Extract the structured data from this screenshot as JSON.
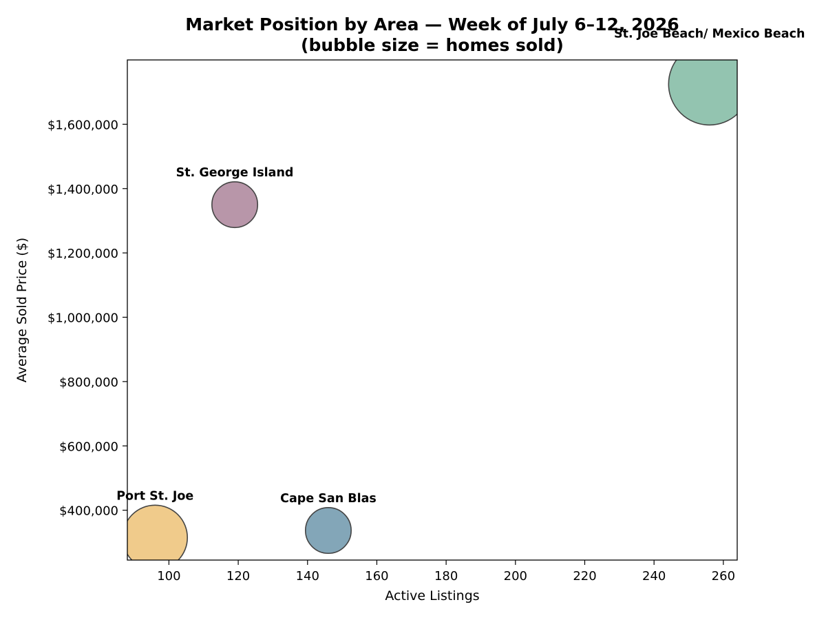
{
  "chart_data": {
    "type": "scatter",
    "title_line1": "Market Position by Area — Week of July 6–12, 2026",
    "title_line2": "(bubble size = homes sold)",
    "xlabel": "Active Listings",
    "ylabel": "Average Sold Price ($)",
    "xlim": [
      88,
      264
    ],
    "ylim": [
      245000,
      1800000
    ],
    "xticks": [
      100,
      120,
      140,
      160,
      180,
      200,
      220,
      240,
      260
    ],
    "yticks": [
      400000,
      600000,
      800000,
      1000000,
      1200000,
      1400000,
      1600000
    ],
    "ytick_labels": [
      "$400,000",
      "$600,000",
      "$800,000",
      "$1,000,000",
      "$1,200,000",
      "$1,400,000",
      "$1,600,000"
    ],
    "grid": false,
    "points": [
      {
        "label": "Port St. Joe",
        "x": 96,
        "y": 315000,
        "size": 5,
        "color": "#f0c987"
      },
      {
        "label": "Cape San Blas",
        "x": 146,
        "y": 337000,
        "size": 2.5,
        "color": "#7fa3b6"
      },
      {
        "label": "St. George Island",
        "x": 119,
        "y": 1350000,
        "size": 2.5,
        "color": "#b693a6"
      },
      {
        "label": "St. Joe Beach/ Mexico Beach",
        "x": 256,
        "y": 1725000,
        "size": 8,
        "color": "#8fc2ad"
      }
    ]
  }
}
